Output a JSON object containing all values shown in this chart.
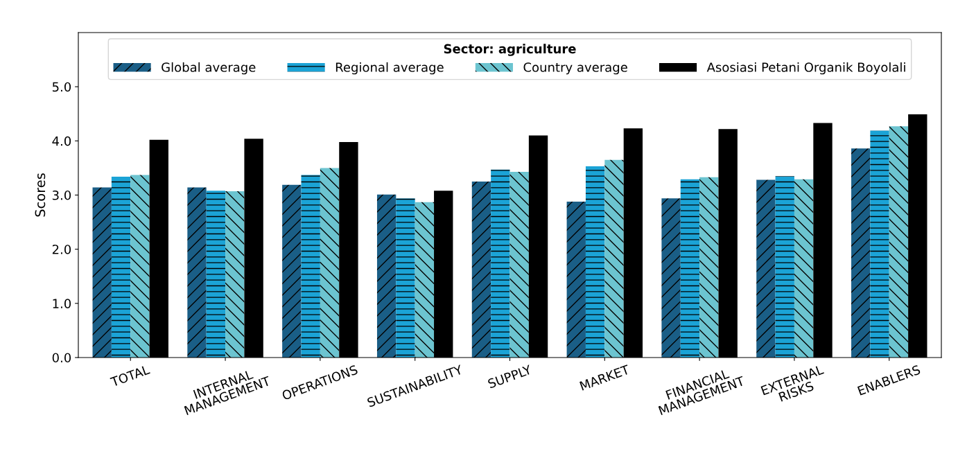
{
  "chart_data": {
    "type": "bar",
    "ylabel": "Scores",
    "legend_title": "Sector: agriculture",
    "legend": "top",
    "categories": [
      "TOTAL",
      "INTERNAL\nMANAGEMENT",
      "OPERATIONS",
      "SUSTAINABILITY",
      "SUPPLY",
      "MARKET",
      "FINANCIAL\nMANAGEMENT",
      "EXTERNAL\nRISKS",
      "ENABLERS"
    ],
    "series": [
      {
        "name": "Global average",
        "color": "#1a5e86",
        "values": [
          3.14,
          3.14,
          3.19,
          3.01,
          3.25,
          2.88,
          2.94,
          3.28,
          3.86
        ]
      },
      {
        "name": "Regional average",
        "color": "#1ba3d6",
        "values": [
          3.34,
          3.08,
          3.37,
          2.94,
          3.47,
          3.53,
          3.29,
          3.35,
          4.19
        ]
      },
      {
        "name": "Country average",
        "color": "#6cc4d0",
        "values": [
          3.37,
          3.07,
          3.5,
          2.87,
          3.43,
          3.65,
          3.33,
          3.29,
          4.27
        ]
      },
      {
        "name": "Asosiasi Petani Organik Boyolali",
        "color": "#000000",
        "values": [
          4.02,
          4.04,
          3.98,
          3.08,
          4.1,
          4.23,
          4.22,
          4.33,
          4.49
        ]
      }
    ],
    "ylim": [
      0,
      6.0
    ],
    "yticks": [
      {
        "value": 0,
        "label": "0.0"
      },
      {
        "value": 1,
        "label": "1.0"
      },
      {
        "value": 2,
        "label": "2.0"
      },
      {
        "value": 3,
        "label": "3.0"
      },
      {
        "value": 4,
        "label": "4.0"
      },
      {
        "value": 5,
        "label": "5.0"
      }
    ],
    "grid": false
  }
}
